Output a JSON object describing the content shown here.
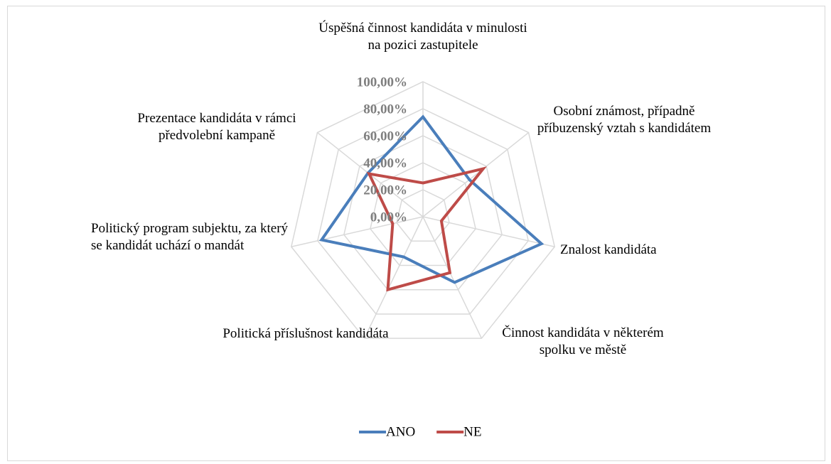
{
  "chart_data": {
    "type": "radar",
    "categories": [
      "Úspěšná činnost kandidáta v minulosti na pozici zastupitele",
      "Osobní známost, případně příbuzenský vztah s kandidátem",
      "Znalost kandidáta",
      "Činnost kandidáta v některém spolku ve městě",
      "Politická příslušnost kandidáta",
      "Politický program subjektu, za který se kandidát uchází o mandát",
      "Prezentace kandidáta v rámci předvolební kampaně"
    ],
    "series": [
      {
        "name": "ANO",
        "color": "#4a7ebb",
        "values": [
          74,
          44,
          90,
          54,
          33,
          77,
          52
        ]
      },
      {
        "name": "NE",
        "color": "#be4b48",
        "values": [
          25,
          57,
          14,
          46,
          60,
          23,
          51
        ]
      }
    ],
    "ylim": [
      0,
      100
    ],
    "yticks": [
      {
        "value": 0,
        "label": "0,00%"
      },
      {
        "value": 20,
        "label": "20,00%"
      },
      {
        "value": 40,
        "label": "40,00%"
      },
      {
        "value": 60,
        "label": "60,00%"
      },
      {
        "value": 80,
        "label": "80,00%"
      },
      {
        "value": 100,
        "label": "100,00%"
      }
    ],
    "grid": true,
    "legend": "bottom"
  }
}
